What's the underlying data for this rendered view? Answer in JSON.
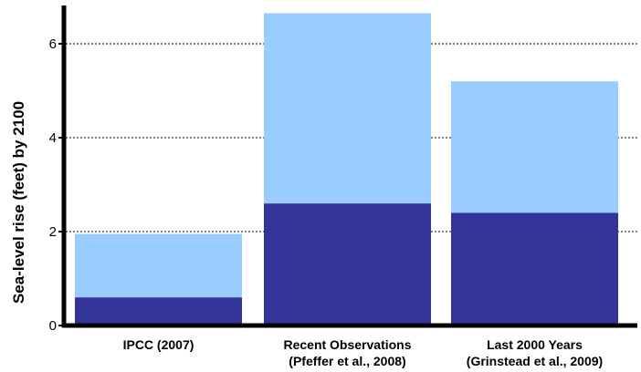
{
  "chart_data": {
    "type": "bar",
    "stacked": true,
    "title": "",
    "xlabel": "",
    "ylabel": "Sea-level rise (feet) by 2100",
    "ylim": [
      0,
      7.3
    ],
    "yticks": [
      0,
      2,
      4,
      6
    ],
    "grid": {
      "y": true,
      "style": "dotted",
      "lines_at": [
        2,
        4,
        6
      ]
    },
    "categories": [
      {
        "lines": [
          "IPCC (2007)"
        ]
      },
      {
        "lines": [
          "Recent Observations",
          "(Pfeffer et al., 2008)"
        ]
      },
      {
        "lines": [
          "Last 2000 Years",
          "(Grinstead et al., 2009)"
        ]
      }
    ],
    "series": [
      {
        "values": [
          0.6,
          2.6,
          2.4
        ],
        "color": "#333399"
      },
      {
        "values": [
          1.35,
          4.05,
          2.8
        ],
        "color": "#99ccff"
      }
    ],
    "totals": [
      1.95,
      6.65,
      5.2
    ]
  }
}
